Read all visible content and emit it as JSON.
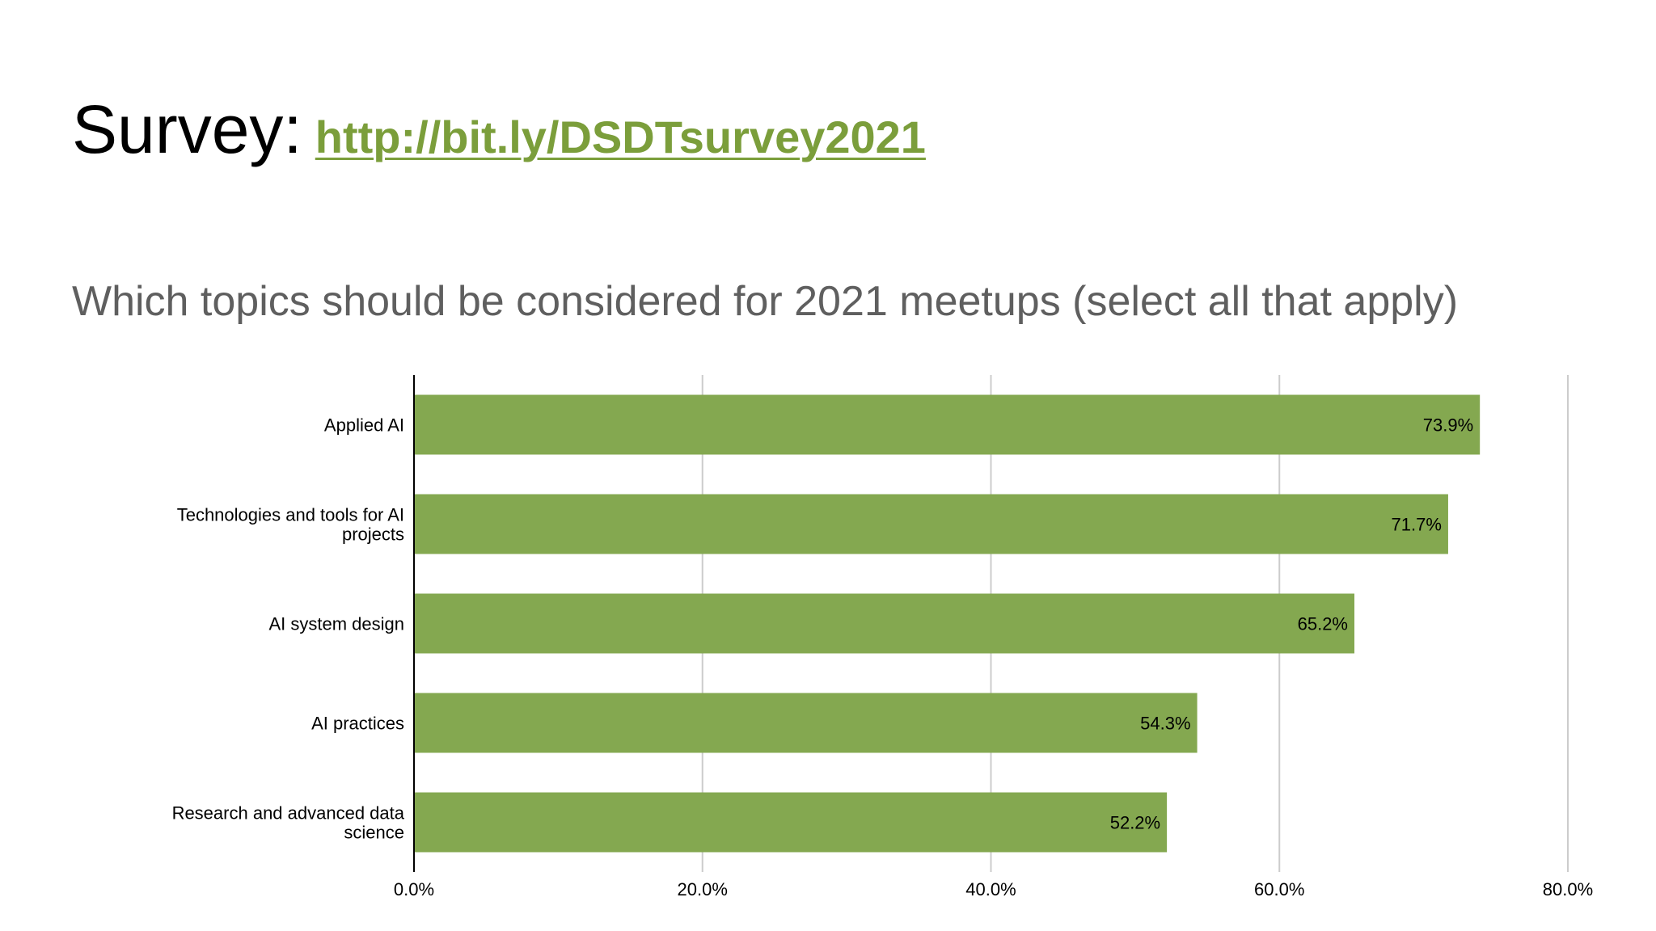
{
  "slide": {
    "title_label": "Survey:",
    "title_link": "http://bit.ly/DSDTsurvey2021"
  },
  "chart_data": {
    "type": "bar",
    "orientation": "horizontal",
    "title": "Which topics should be considered for 2021 meetups (select all that apply)",
    "categories": [
      [
        "Applied AI"
      ],
      [
        "Technologies and tools for AI",
        "projects"
      ],
      [
        "AI system design"
      ],
      [
        "AI practices"
      ],
      [
        "Research and advanced data",
        "science"
      ]
    ],
    "values": [
      73.9,
      71.7,
      65.2,
      54.3,
      52.2
    ],
    "data_labels": [
      "73.9%",
      "71.7%",
      "65.2%",
      "54.3%",
      "52.2%"
    ],
    "xlim": [
      0,
      80
    ],
    "x_ticks": [
      0,
      20,
      40,
      60,
      80
    ],
    "x_tick_labels": [
      "0.0%",
      "20.0%",
      "40.0%",
      "60.0%",
      "80.0%"
    ],
    "grid": true,
    "legend": "none",
    "colors": {
      "bar": "#84a850",
      "grid": "#cccccc",
      "axis": "#000000",
      "text": "#000000"
    }
  }
}
